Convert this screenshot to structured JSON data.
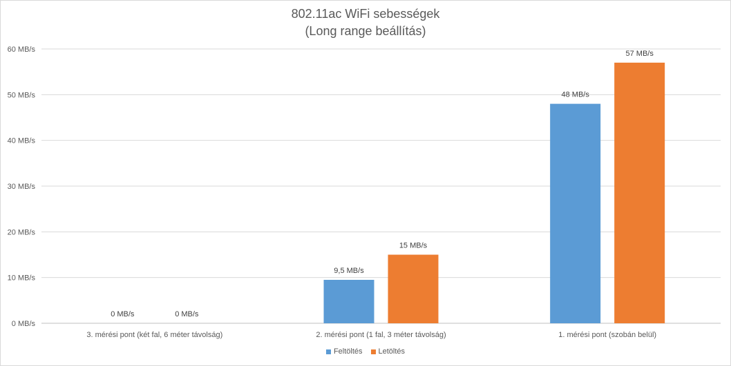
{
  "chart_data": {
    "type": "bar",
    "title": "802.11ac WiFi sebességek",
    "subtitle": "(Long range beállítás)",
    "categories": [
      "3. mérési pont (két fal, 6 méter távolság)",
      "2. mérési pont (1 fal, 3 méter távolság)",
      "1. mérési pont (szobán belül)"
    ],
    "series": [
      {
        "name": "Feltöltés",
        "color": "#5b9bd5",
        "values": [
          0,
          9.5,
          48
        ],
        "labels": [
          "0 MB/s",
          "9,5 MB/s",
          "48 MB/s"
        ]
      },
      {
        "name": "Letöltés",
        "color": "#ed7d31",
        "values": [
          0,
          15,
          57
        ],
        "labels": [
          "0 MB/s",
          "15 MB/s",
          "57 MB/s"
        ]
      }
    ],
    "ylim": [
      0,
      60
    ],
    "yticks": [
      0,
      10,
      20,
      30,
      40,
      50,
      60
    ],
    "ytick_labels": [
      "0 MB/s",
      "10 MB/s",
      "20 MB/s",
      "30 MB/s",
      "40 MB/s",
      "50 MB/s",
      "60 MB/s"
    ],
    "grid": true,
    "legend": "bottom"
  }
}
